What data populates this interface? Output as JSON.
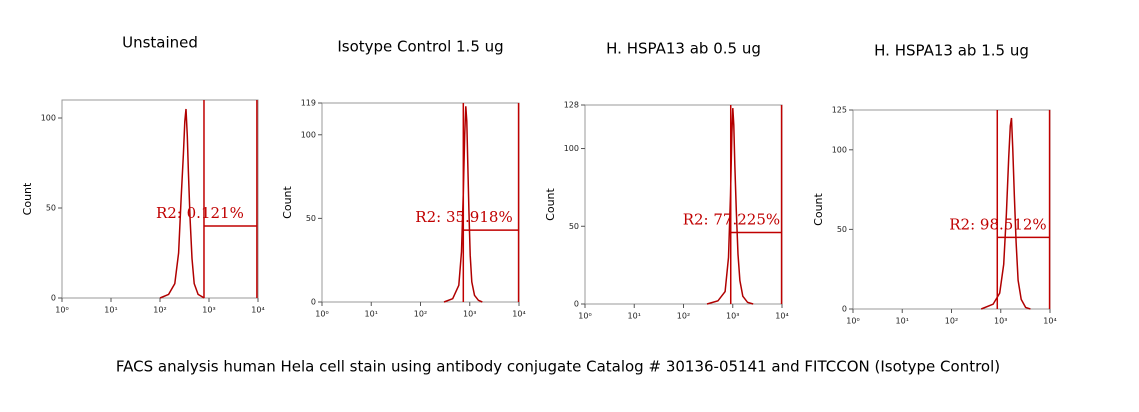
{
  "chart_data": [
    {
      "type": "histogram",
      "title": "Unstained",
      "ylabel": "Count",
      "log_x": true,
      "color": "#b00000",
      "gate_color": "#c00000",
      "xlim": [
        1,
        10000
      ],
      "xticks": [
        {
          "value": 1,
          "label": "10⁰"
        },
        {
          "value": 10,
          "label": "10¹"
        },
        {
          "value": 100,
          "label": "10²"
        },
        {
          "value": 1000,
          "label": "10³"
        },
        {
          "value": 10000,
          "label": "10⁴"
        }
      ],
      "ylim": [
        0,
        110
      ],
      "yticks": [
        0,
        50,
        100
      ],
      "x": [
        100,
        150,
        200,
        240,
        270,
        300,
        320,
        340,
        360,
        380,
        410,
        450,
        500,
        600,
        800
      ],
      "values": [
        0,
        2,
        8,
        25,
        55,
        80,
        98,
        105,
        90,
        70,
        45,
        22,
        8,
        2,
        0
      ],
      "gate": [
        790,
        9500
      ],
      "gate_level": 40,
      "annotation": "R2: 0.121%"
    },
    {
      "type": "histogram",
      "title": "Isotype Control 1.5 ug",
      "ylabel": "Count",
      "log_x": true,
      "color": "#b00000",
      "gate_color": "#c00000",
      "xlim": [
        1,
        10000
      ],
      "xticks": [
        {
          "value": 1,
          "label": "10⁰"
        },
        {
          "value": 10,
          "label": "10¹"
        },
        {
          "value": 100,
          "label": "10²"
        },
        {
          "value": 1000,
          "label": "10³"
        },
        {
          "value": 10000,
          "label": "10⁴"
        }
      ],
      "ylim": [
        0,
        119
      ],
      "yticks": [
        0,
        50,
        100,
        119
      ],
      "x": [
        300,
        450,
        600,
        680,
        740,
        790,
        830,
        870,
        910,
        960,
        1020,
        1100,
        1250,
        1500,
        1800
      ],
      "values": [
        0,
        2,
        10,
        30,
        65,
        100,
        117,
        108,
        85,
        55,
        28,
        12,
        4,
        1,
        0
      ],
      "gate": [
        740,
        9800
      ],
      "gate_level": 43,
      "annotation": "R2: 35.918%"
    },
    {
      "type": "histogram",
      "title": "H. HSPA13 ab 0.5 ug",
      "ylabel": "Count",
      "log_x": true,
      "color": "#b00000",
      "gate_color": "#c00000",
      "xlim": [
        1,
        10000
      ],
      "xticks": [
        {
          "value": 1,
          "label": "10⁰"
        },
        {
          "value": 10,
          "label": "10¹"
        },
        {
          "value": 100,
          "label": "10²"
        },
        {
          "value": 1000,
          "label": "10³"
        },
        {
          "value": 10000,
          "label": "10⁴"
        }
      ],
      "ylim": [
        0,
        128
      ],
      "yticks": [
        0,
        50,
        100,
        128
      ],
      "x": [
        300,
        500,
        700,
        820,
        900,
        960,
        1000,
        1050,
        1100,
        1180,
        1280,
        1400,
        1600,
        2000,
        2600
      ],
      "values": [
        0,
        2,
        8,
        30,
        70,
        110,
        126,
        115,
        90,
        60,
        32,
        15,
        5,
        1,
        0
      ],
      "gate": [
        910,
        9800
      ],
      "gate_level": 46,
      "annotation": "R2: 77.225%"
    },
    {
      "type": "histogram",
      "title": "H. HSPA13 ab 1.5 ug",
      "ylabel": "Count",
      "log_x": true,
      "color": "#b00000",
      "gate_color": "#c00000",
      "xlim": [
        1,
        10000
      ],
      "xticks": [
        {
          "value": 1,
          "label": "10⁰"
        },
        {
          "value": 10,
          "label": "10¹"
        },
        {
          "value": 100,
          "label": "10²"
        },
        {
          "value": 1000,
          "label": "10³"
        },
        {
          "value": 10000,
          "label": "10⁴"
        }
      ],
      "ylim": [
        0,
        125
      ],
      "yticks": [
        0,
        50,
        100,
        125
      ],
      "x": [
        400,
        700,
        950,
        1150,
        1300,
        1450,
        1560,
        1650,
        1760,
        1880,
        2050,
        2250,
        2600,
        3200,
        4000
      ],
      "values": [
        0,
        3,
        10,
        28,
        60,
        95,
        115,
        120,
        100,
        72,
        42,
        18,
        6,
        1,
        0
      ],
      "gate": [
        850,
        9800
      ],
      "gate_level": 45,
      "annotation": "R2: 98.512%"
    }
  ],
  "caption": "FACS analysis human Hela cell stain using antibody conjugate Catalog # 30136-05141 and FITCCON (Isotype Control)"
}
